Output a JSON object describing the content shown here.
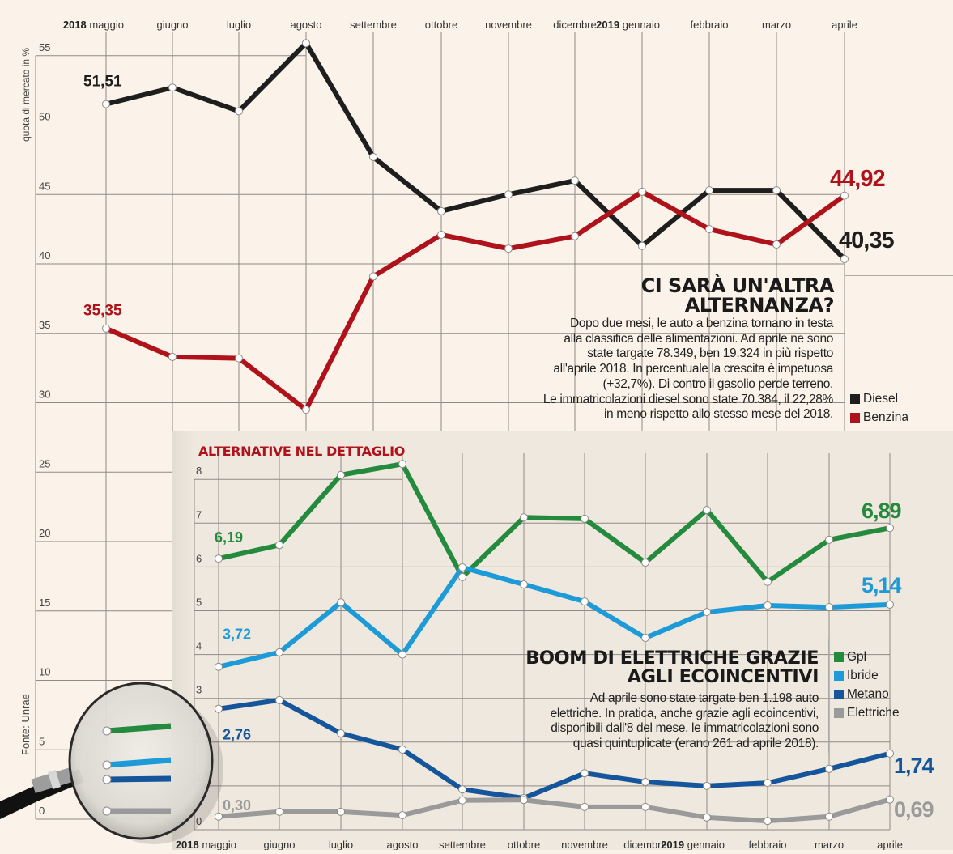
{
  "chart_data": [
    {
      "type": "line",
      "title": "Ci sarà un'altra alternanza?",
      "ylabel": "quota di mercato in %",
      "xlabel": "",
      "ylim": [
        0,
        55
      ],
      "yticks": [
        0,
        5,
        10,
        15,
        20,
        25,
        30,
        35,
        40,
        45,
        50,
        55
      ],
      "grid": true,
      "legend_position": "right",
      "year_markers": [
        {
          "index": 0,
          "year": "2018"
        },
        {
          "index": 8,
          "year": "2019"
        }
      ],
      "categories": [
        "maggio",
        "giugno",
        "luglio",
        "agosto",
        "settembre",
        "ottobre",
        "novembre",
        "dicembre",
        "gennaio",
        "febbraio",
        "marzo",
        "aprile"
      ],
      "series": [
        {
          "name": "Diesel",
          "color": "#1e1e1e",
          "values": [
            51.51,
            52.7,
            51.0,
            55.9,
            47.7,
            43.8,
            45.0,
            46.0,
            41.3,
            45.3,
            45.3,
            40.35
          ],
          "labels": [
            {
              "index": 0,
              "text": "51,51"
            },
            {
              "index": 11,
              "text": "40,35"
            }
          ]
        },
        {
          "name": "Benzina",
          "color": "#b0121b",
          "values": [
            35.35,
            33.3,
            33.2,
            29.5,
            39.1,
            42.1,
            41.1,
            42.0,
            45.2,
            42.5,
            41.4,
            44.92
          ],
          "labels": [
            {
              "index": 0,
              "text": "35,35"
            },
            {
              "index": 11,
              "text": "44,92"
            }
          ]
        }
      ]
    },
    {
      "type": "line",
      "title": "Alternative nel dettaglio",
      "ylabel": "",
      "xlabel": "",
      "ylim": [
        0,
        8
      ],
      "yticks": [
        0,
        1,
        2,
        3,
        4,
        5,
        6,
        7,
        8
      ],
      "grid": true,
      "legend_position": "right",
      "year_markers": [
        {
          "index": 0,
          "year": "2018"
        },
        {
          "index": 8,
          "year": "2019"
        }
      ],
      "categories": [
        "maggio",
        "giugno",
        "luglio",
        "agosto",
        "settembre",
        "ottobre",
        "novembre",
        "dicembre",
        "gennaio",
        "febbraio",
        "marzo",
        "aprile"
      ],
      "series": [
        {
          "name": "Gpl",
          "color": "#238a3e",
          "values": [
            6.19,
            6.5,
            8.1,
            8.35,
            5.77,
            7.13,
            7.1,
            6.1,
            7.3,
            5.66,
            6.62,
            6.89
          ],
          "labels": [
            {
              "index": 0,
              "text": "6,19"
            },
            {
              "index": 11,
              "text": "6,89"
            }
          ]
        },
        {
          "name": "Ibride",
          "color": "#1d9ad8",
          "values": [
            3.72,
            4.05,
            5.19,
            4.0,
            5.99,
            5.6,
            5.21,
            4.38,
            4.97,
            5.12,
            5.08,
            5.14
          ],
          "labels": [
            {
              "index": 0,
              "text": "3,72"
            },
            {
              "index": 11,
              "text": "5,14"
            }
          ]
        },
        {
          "name": "Metano",
          "color": "#14559b",
          "values": [
            2.76,
            2.96,
            2.2,
            1.83,
            0.92,
            0.72,
            1.29,
            1.09,
            1.0,
            1.07,
            1.39,
            1.74
          ],
          "labels": [
            {
              "index": 0,
              "text": "2,76"
            },
            {
              "index": 11,
              "text": "1,74"
            }
          ]
        },
        {
          "name": "Elettriche",
          "color": "#9a9a9a",
          "values": [
            0.3,
            0.41,
            0.41,
            0.33,
            0.67,
            0.68,
            0.52,
            0.52,
            0.28,
            0.2,
            0.3,
            0.69
          ],
          "labels": [
            {
              "index": 0,
              "text": "0,30"
            },
            {
              "index": 11,
              "text": "0,69"
            }
          ]
        }
      ]
    }
  ],
  "panels": {
    "top": {
      "title_line1": "CI SARÀ UN'ALTRA",
      "title_line2": "ALTERNANZA?",
      "body": [
        "Dopo due mesi, le auto a benzina tornano in testa",
        "alla classifica delle alimentazioni. Ad aprile ne sono",
        "state targate 78.349, ben 19.324 in più rispetto",
        "all'aprile 2018. In percentuale la crescita è impetuosa",
        "(+32,7%). Di contro il gasolio perde terreno.",
        "Le immatricolazioni diesel sono state 70.384, il 22,28%",
        "in meno rispetto allo stesso mese del 2018."
      ]
    },
    "bottom": {
      "section_title": "ALTERNATIVE NEL DETTAGLIO",
      "title_line1": "BOOM DI ELETTRICHE GRAZIE",
      "title_line2": "AGLI ECOINCENTIVI",
      "body": [
        "Ad aprile sono state targate ben 1.198 auto",
        "elettriche. In pratica, anche grazie agli ecoincentivi,",
        "disponibili dall'8 del mese, le immatricolazioni sono",
        "quasi quintuplicate (erano 261 ad aprile 2018)."
      ]
    }
  },
  "axis": {
    "ylabel_top": "quota di mercato in %",
    "source": "Fonte: Unrae"
  },
  "icons": {
    "magnifier": "magnifying-glass-icon"
  }
}
